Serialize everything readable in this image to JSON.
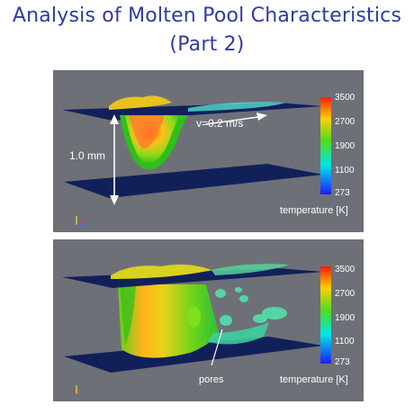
{
  "title_line1": "Analysis of Molten Pool Characteristics",
  "title_line2": "(Part 2)",
  "panel1": {
    "velocity_label": "v=0.2 m/s",
    "depth_label": "1.0 mm",
    "colorbar_title": "temperature [K]",
    "colorbar_ticks": [
      "3500",
      "2700",
      "1900",
      "1100",
      "273"
    ]
  },
  "panel2": {
    "pores_label": "pores",
    "colorbar_title": "temperature [K]",
    "colorbar_ticks": [
      "3500",
      "2700",
      "1900",
      "1100",
      "273"
    ]
  },
  "colors": {
    "title": "#2f3aa3",
    "background": "#6e7078",
    "plate": "#12205a"
  }
}
